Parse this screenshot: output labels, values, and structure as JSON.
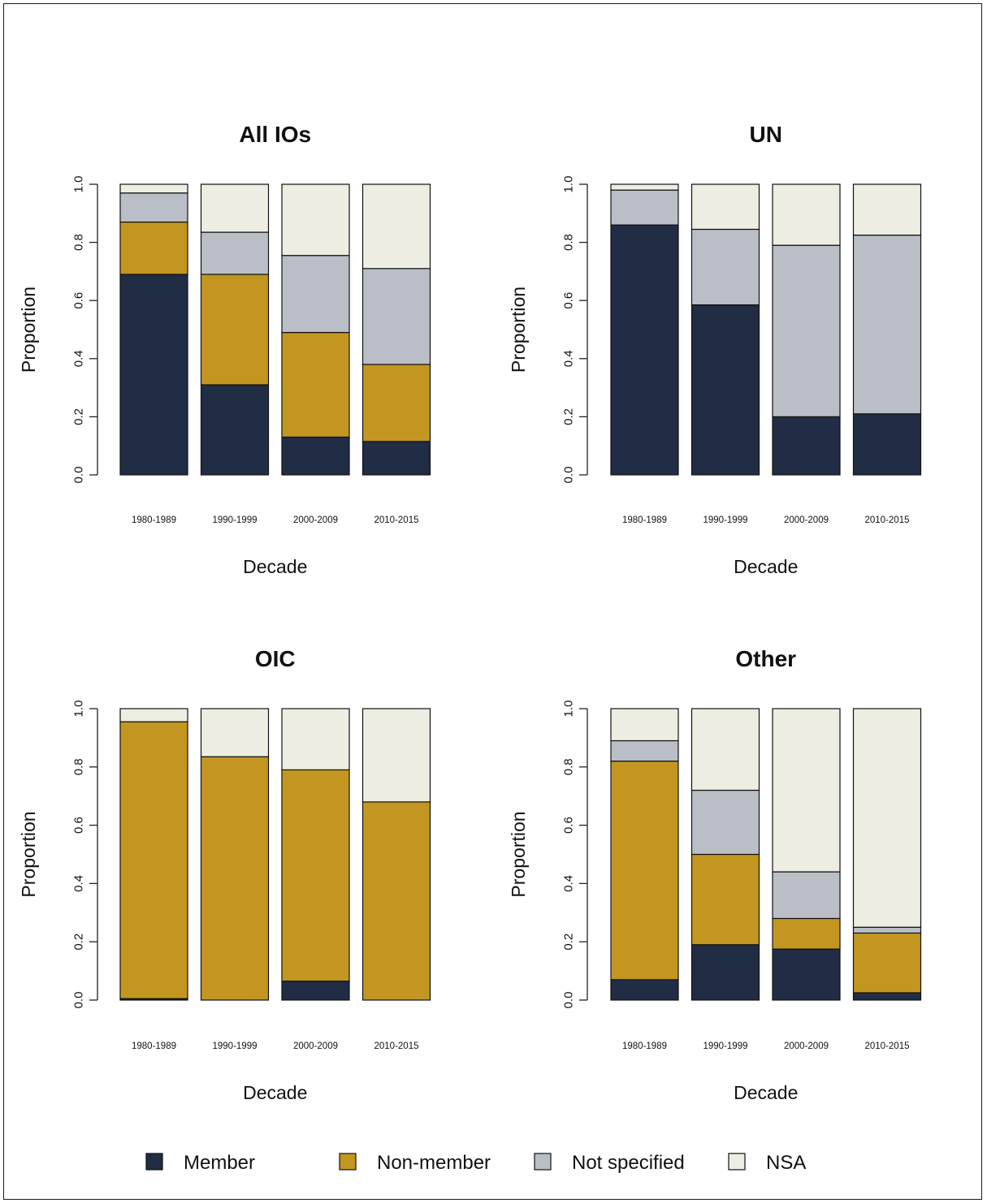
{
  "colors": {
    "Member": "#202d44",
    "Non-member": "#c29620",
    "Not specified": "#b9bec7",
    "NSA": "#edede2"
  },
  "legend": {
    "items": [
      "Member",
      "Non-member",
      "Not specified",
      "NSA"
    ],
    "placement": "bottom"
  },
  "chart_data": [
    {
      "type": "bar",
      "stacked": true,
      "title": "All IOs",
      "xlabel": "Decade",
      "ylabel": "Proportion",
      "ylim": [
        0,
        1
      ],
      "yticks": [
        "0.0",
        "0.2",
        "0.4",
        "0.6",
        "0.8",
        "1.0"
      ],
      "categories": [
        "1980-1989",
        "1990-1999",
        "2000-2009",
        "2010-2015"
      ],
      "series": [
        {
          "name": "Member",
          "values": [
            0.69,
            0.31,
            0.13,
            0.115
          ]
        },
        {
          "name": "Non-member",
          "values": [
            0.18,
            0.38,
            0.36,
            0.265
          ]
        },
        {
          "name": "Not specified",
          "values": [
            0.1,
            0.145,
            0.265,
            0.33
          ]
        },
        {
          "name": "NSA",
          "values": [
            0.03,
            0.165,
            0.245,
            0.29
          ]
        }
      ]
    },
    {
      "type": "bar",
      "stacked": true,
      "title": "UN",
      "xlabel": "Decade",
      "ylabel": "Proportion",
      "ylim": [
        0,
        1
      ],
      "yticks": [
        "0.0",
        "0.2",
        "0.4",
        "0.6",
        "0.8",
        "1.0"
      ],
      "categories": [
        "1980-1989",
        "1990-1999",
        "2000-2009",
        "2010-2015"
      ],
      "series": [
        {
          "name": "Member",
          "values": [
            0.86,
            0.585,
            0.2,
            0.21
          ]
        },
        {
          "name": "Non-member",
          "values": [
            0.0,
            0.0,
            0.0,
            0.0
          ]
        },
        {
          "name": "Not specified",
          "values": [
            0.12,
            0.26,
            0.59,
            0.615
          ]
        },
        {
          "name": "NSA",
          "values": [
            0.02,
            0.155,
            0.21,
            0.175
          ]
        }
      ]
    },
    {
      "type": "bar",
      "stacked": true,
      "title": "OIC",
      "xlabel": "Decade",
      "ylabel": "Proportion",
      "ylim": [
        0,
        1
      ],
      "yticks": [
        "0.0",
        "0.2",
        "0.4",
        "0.6",
        "0.8",
        "1.0"
      ],
      "categories": [
        "1980-1989",
        "1990-1999",
        "2000-2009",
        "2010-2015"
      ],
      "series": [
        {
          "name": "Member",
          "values": [
            0.005,
            0.0,
            0.065,
            0.0
          ]
        },
        {
          "name": "Non-member",
          "values": [
            0.95,
            0.835,
            0.725,
            0.68
          ]
        },
        {
          "name": "Not specified",
          "values": [
            0.0,
            0.0,
            0.0,
            0.0
          ]
        },
        {
          "name": "NSA",
          "values": [
            0.045,
            0.165,
            0.21,
            0.32
          ]
        }
      ]
    },
    {
      "type": "bar",
      "stacked": true,
      "title": "Other",
      "xlabel": "Decade",
      "ylabel": "Proportion",
      "ylim": [
        0,
        1
      ],
      "yticks": [
        "0.0",
        "0.2",
        "0.4",
        "0.6",
        "0.8",
        "1.0"
      ],
      "categories": [
        "1980-1989",
        "1990-1999",
        "2000-2009",
        "2010-2015"
      ],
      "series": [
        {
          "name": "Member",
          "values": [
            0.07,
            0.19,
            0.175,
            0.025
          ]
        },
        {
          "name": "Non-member",
          "values": [
            0.75,
            0.31,
            0.105,
            0.205
          ]
        },
        {
          "name": "Not specified",
          "values": [
            0.07,
            0.22,
            0.16,
            0.02
          ]
        },
        {
          "name": "NSA",
          "values": [
            0.11,
            0.28,
            0.56,
            0.75
          ]
        }
      ]
    }
  ]
}
